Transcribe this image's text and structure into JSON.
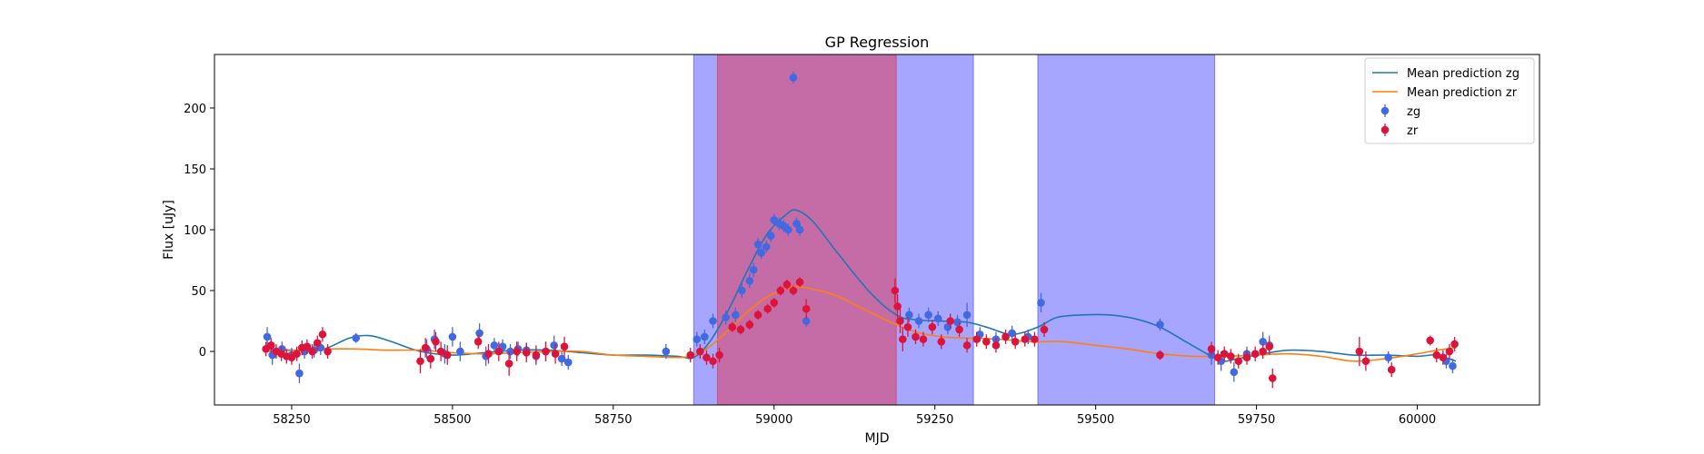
{
  "chart_data": {
    "type": "scatter",
    "title": "GP Regression",
    "xlabel": "MJD",
    "ylabel": "Flux [uJy]",
    "xlim": [
      58130,
      60190
    ],
    "ylim": [
      -44,
      244
    ],
    "xticks": [
      58250,
      58500,
      58750,
      59000,
      59250,
      59500,
      59750,
      60000
    ],
    "yticks": [
      0,
      50,
      100,
      150,
      200
    ],
    "legend_position": "upper right",
    "shaded_regions": [
      {
        "x0": 58875,
        "x1": 59310,
        "color": "#0000ff",
        "opacity": 0.35
      },
      {
        "x0": 58912,
        "x1": 59190,
        "color": "#ff0000",
        "opacity": 0.35
      },
      {
        "x0": 59410,
        "x1": 59685,
        "color": "#0000ff",
        "opacity": 0.35
      }
    ],
    "series": [
      {
        "name": "Mean prediction zg",
        "kind": "line",
        "color": "#1f77b4",
        "x": [
          58210,
          58260,
          58300,
          58340,
          58370,
          58400,
          58450,
          58500,
          58550,
          58600,
          58650,
          58700,
          58750,
          58800,
          58850,
          58875,
          58900,
          58930,
          58960,
          58990,
          59020,
          59035,
          59060,
          59100,
          59150,
          59190,
          59220,
          59260,
          59300,
          59330,
          59370,
          59410,
          59440,
          59480,
          59520,
          59560,
          59600,
          59640,
          59680,
          59700,
          59720,
          59760,
          59800,
          59850,
          59900,
          59950,
          60000,
          60030,
          60060
        ],
        "y": [
          2,
          1,
          2,
          11,
          13,
          9,
          0,
          -3,
          -1,
          1,
          1,
          -1,
          -3,
          -3,
          -4,
          -5,
          8,
          35,
          68,
          97,
          113,
          116,
          107,
          80,
          48,
          30,
          26,
          25,
          24,
          20,
          14,
          20,
          28,
          30,
          30,
          27,
          20,
          8,
          -4,
          -8,
          -6,
          -2,
          1,
          0,
          -3,
          -3,
          -4,
          -3,
          -8
        ]
      },
      {
        "name": "Mean prediction zr",
        "kind": "line",
        "color": "#ff7f0e",
        "x": [
          58210,
          58260,
          58300,
          58350,
          58400,
          58450,
          58500,
          58550,
          58600,
          58650,
          58700,
          58750,
          58800,
          58850,
          58875,
          58900,
          58930,
          58960,
          58990,
          59020,
          59040,
          59070,
          59100,
          59150,
          59190,
          59220,
          59260,
          59300,
          59350,
          59400,
          59450,
          59500,
          59550,
          59600,
          59650,
          59700,
          59750,
          59800,
          59850,
          59900,
          59950,
          60000,
          60030,
          60060
        ],
        "y": [
          0,
          1,
          2,
          2,
          1,
          1,
          -1,
          -2,
          -1,
          0,
          0,
          -3,
          -4,
          -5,
          -3,
          4,
          18,
          33,
          45,
          52,
          53,
          50,
          45,
          32,
          22,
          16,
          12,
          11,
          10,
          8,
          8,
          5,
          2,
          -2,
          -4,
          -4,
          -3,
          -2,
          -4,
          -8,
          -6,
          -2,
          1,
          3
        ]
      },
      {
        "name": "zg",
        "kind": "points",
        "color": "#4169e1",
        "x": [
          58212,
          58220,
          58235,
          58250,
          58262,
          58270,
          58285,
          58295,
          58350,
          58460,
          58472,
          58488,
          58500,
          58512,
          58542,
          58552,
          58565,
          58578,
          58590,
          58602,
          58615,
          58630,
          58645,
          58658,
          58670,
          58680,
          58832,
          58880,
          58892,
          58905,
          58925,
          58940,
          58950,
          58962,
          58968,
          58975,
          58980,
          58988,
          58995,
          59000,
          59008,
          59015,
          59022,
          59030,
          59035,
          59040,
          59050,
          59210,
          59225,
          59240,
          59255,
          59270,
          59285,
          59300,
          59320,
          59345,
          59370,
          59395,
          59415,
          59600,
          59680,
          59695,
          59715,
          59735,
          59760,
          59770,
          59955,
          60045,
          60055
        ],
        "y": [
          12,
          -3,
          2,
          -3,
          -18,
          0,
          1,
          3,
          11,
          2,
          10,
          -2,
          12,
          0,
          15,
          -4,
          5,
          4,
          0,
          2,
          1,
          -4,
          0,
          5,
          -6,
          -9,
          0,
          10,
          12,
          25,
          28,
          30,
          50,
          58,
          67,
          88,
          81,
          86,
          95,
          108,
          105,
          103,
          100,
          225,
          105,
          100,
          25,
          30,
          25,
          30,
          27,
          20,
          24,
          30,
          14,
          10,
          15,
          12,
          40,
          22,
          -3,
          -8,
          -17,
          -2,
          8,
          5,
          -5,
          -8,
          -12
        ],
        "err": [
          8,
          8,
          6,
          6,
          8,
          6,
          6,
          6,
          4,
          8,
          8,
          8,
          8,
          8,
          8,
          8,
          6,
          6,
          6,
          6,
          6,
          6,
          8,
          8,
          6,
          6,
          6,
          6,
          6,
          6,
          6,
          6,
          6,
          6,
          6,
          5,
          5,
          5,
          5,
          5,
          5,
          5,
          5,
          5,
          5,
          5,
          5,
          6,
          6,
          6,
          6,
          6,
          6,
          10,
          6,
          6,
          6,
          6,
          8,
          5,
          8,
          8,
          8,
          6,
          8,
          8,
          5,
          6,
          6
        ]
      },
      {
        "name": "zr",
        "kind": "points",
        "color": "#dc143c",
        "x": [
          58210,
          58218,
          58226,
          58234,
          58242,
          58250,
          58258,
          58266,
          58274,
          58282,
          58290,
          58298,
          58306,
          58450,
          58458,
          58466,
          58474,
          58482,
          58492,
          58540,
          58556,
          58572,
          58588,
          58600,
          58615,
          58630,
          58645,
          58660,
          58674,
          58870,
          58885,
          58895,
          58905,
          58915,
          58935,
          58948,
          58962,
          58975,
          58990,
          59000,
          59010,
          59020,
          59030,
          59040,
          59050,
          59188,
          59192,
          59196,
          59200,
          59208,
          59220,
          59232,
          59246,
          59260,
          59274,
          59288,
          59300,
          59315,
          59330,
          59345,
          59360,
          59375,
          59390,
          59405,
          59420,
          59600,
          59680,
          59690,
          59700,
          59710,
          59722,
          59735,
          59748,
          59760,
          59770,
          59775,
          59910,
          59920,
          59960,
          60020,
          60030,
          60040,
          60050,
          60058
        ],
        "y": [
          2,
          5,
          0,
          -2,
          -4,
          -5,
          -2,
          3,
          4,
          0,
          7,
          14,
          0,
          -8,
          3,
          -6,
          8,
          0,
          -3,
          8,
          -2,
          0,
          -10,
          0,
          -1,
          -3,
          0,
          -2,
          4,
          -3,
          0,
          -5,
          -8,
          -3,
          20,
          18,
          22,
          30,
          35,
          40,
          50,
          55,
          50,
          57,
          35,
          50,
          37,
          25,
          10,
          20,
          12,
          10,
          20,
          8,
          25,
          18,
          5,
          10,
          8,
          5,
          12,
          8,
          10,
          10,
          18,
          -3,
          2,
          -5,
          -2,
          -4,
          -8,
          -5,
          -2,
          0,
          4,
          -22,
          0,
          -8,
          -15,
          9,
          -3,
          -5,
          0,
          6
        ],
        "err": [
          6,
          6,
          6,
          6,
          6,
          6,
          6,
          6,
          6,
          6,
          6,
          6,
          6,
          10,
          8,
          8,
          8,
          8,
          8,
          6,
          8,
          8,
          10,
          8,
          8,
          8,
          8,
          8,
          8,
          6,
          6,
          6,
          6,
          6,
          4,
          4,
          4,
          4,
          4,
          4,
          4,
          4,
          4,
          4,
          8,
          10,
          10,
          10,
          10,
          8,
          6,
          6,
          6,
          6,
          6,
          6,
          6,
          6,
          6,
          6,
          6,
          6,
          6,
          6,
          6,
          4,
          6,
          6,
          6,
          6,
          6,
          6,
          6,
          6,
          6,
          8,
          12,
          8,
          6,
          4,
          6,
          6,
          6,
          6
        ]
      }
    ]
  }
}
